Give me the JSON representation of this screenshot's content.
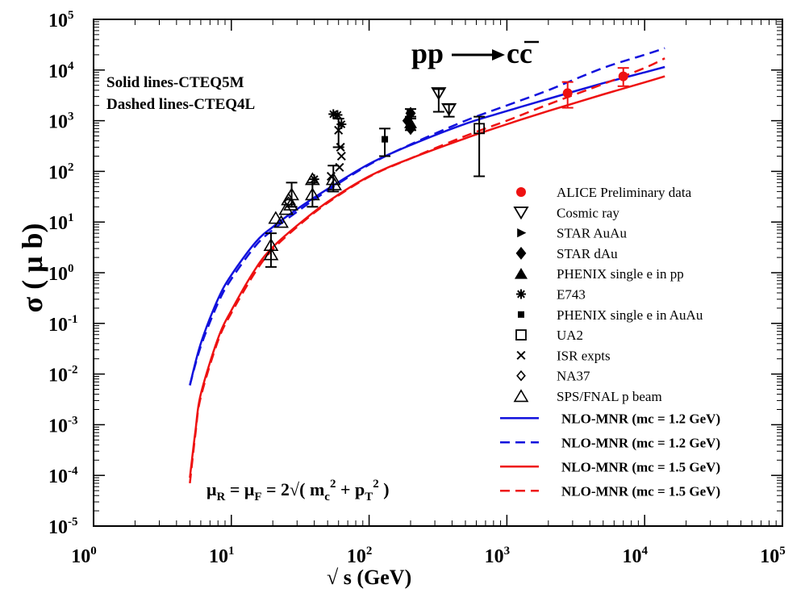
{
  "chart_data": {
    "type": "scatter",
    "title": "pp ⟶ cc̄",
    "xlabel": "√ s   (GeV)",
    "ylabel": "σ  ( μ b)",
    "x_scale": "log",
    "y_scale": "log",
    "xlim": [
      1,
      100000
    ],
    "ylim": [
      1e-05,
      100000
    ],
    "x_ticks": [
      {
        "base": "10",
        "exp": "0"
      },
      {
        "base": "10",
        "exp": "1"
      },
      {
        "base": "10",
        "exp": "2"
      },
      {
        "base": "10",
        "exp": "3"
      },
      {
        "base": "10",
        "exp": "4"
      },
      {
        "base": "10",
        "exp": "5"
      }
    ],
    "y_ticks": [
      {
        "base": "10",
        "exp": "-5"
      },
      {
        "base": "10",
        "exp": "-4"
      },
      {
        "base": "10",
        "exp": "-3"
      },
      {
        "base": "10",
        "exp": "-2"
      },
      {
        "base": "10",
        "exp": "-1"
      },
      {
        "base": "10",
        "exp": "0"
      },
      {
        "base": "10",
        "exp": "1"
      },
      {
        "base": "10",
        "exp": "2"
      },
      {
        "base": "10",
        "exp": "3"
      },
      {
        "base": "10",
        "exp": "4"
      },
      {
        "base": "10",
        "exp": "5"
      }
    ],
    "annotations": {
      "solid_note": "Solid lines-CTEQ5M",
      "dashed_note": "Dashed lines-CTEQ4L",
      "scale_formula": "μR = μF = 2√( mc2 + pT2 )"
    },
    "curves": [
      {
        "name": "NLO-MNR (mc = 1.2 GeV)",
        "color": "#1111dd",
        "dash": false,
        "x": [
          5,
          6,
          8,
          10,
          15,
          20,
          30,
          50,
          100,
          200,
          500,
          1000,
          2000,
          5000,
          10000,
          14000
        ],
        "y": [
          0.006,
          0.04,
          0.3,
          0.9,
          4,
          8,
          18,
          45,
          140,
          330,
          870,
          1550,
          2700,
          5500,
          9000,
          11500
        ]
      },
      {
        "name": "NLO-MNR (mc = 1.2 GeV)",
        "color": "#1111dd",
        "dash": true,
        "x": [
          5,
          6,
          8,
          10,
          15,
          20,
          30,
          50,
          100,
          200,
          500,
          1000,
          2000,
          5000,
          10000,
          14000
        ],
        "y": [
          0.006,
          0.035,
          0.25,
          0.75,
          3.4,
          7,
          16,
          42,
          135,
          340,
          1000,
          2000,
          4000,
          11000,
          20000,
          27000
        ]
      },
      {
        "name": "NLO-MNR (mc = 1.5 GeV)",
        "color": "#ee1111",
        "dash": false,
        "x": [
          5,
          5.5,
          6,
          8,
          10,
          15,
          20,
          30,
          50,
          100,
          200,
          500,
          1000,
          2000,
          5000,
          10000,
          14000
        ],
        "y": [
          9e-05,
          0.0008,
          0.004,
          0.05,
          0.18,
          1.2,
          3.2,
          8.5,
          25,
          80,
          180,
          450,
          850,
          1550,
          3300,
          5700,
          7500
        ]
      },
      {
        "name": "NLO-MNR (mc = 1.5 GeV)",
        "color": "#ee1111",
        "dash": true,
        "x": [
          5,
          5.5,
          6,
          8,
          10,
          15,
          20,
          30,
          50,
          100,
          200,
          500,
          1000,
          2000,
          5000,
          10000,
          14000
        ],
        "y": [
          7e-05,
          0.0007,
          0.0035,
          0.045,
          0.16,
          1.05,
          2.9,
          8,
          24,
          78,
          180,
          500,
          1000,
          2100,
          5300,
          11000,
          17000
        ]
      }
    ],
    "series": [
      {
        "name": "ALICE Preliminary data",
        "marker": "circle",
        "color": "#ee1111",
        "points": [
          {
            "x": 2760,
            "y": 3500,
            "lo": 1800,
            "hi": 5800
          },
          {
            "x": 7000,
            "y": 7500,
            "lo": 4800,
            "hi": 11000
          }
        ]
      },
      {
        "name": "Cosmic ray",
        "marker": "triangle-down",
        "points": [
          {
            "x": 320,
            "y": 3500,
            "lo": 1500,
            "hi": 4200
          },
          {
            "x": 380,
            "y": 1700,
            "lo": 1200,
            "hi": 2100
          }
        ]
      },
      {
        "name": "STAR AuAu",
        "marker": "triangle-right",
        "points": [
          {
            "x": 200,
            "y": 1400
          }
        ]
      },
      {
        "name": "STAR dAu",
        "marker": "diamond",
        "points": [
          {
            "x": 200,
            "y": 1400,
            "lo": 1100,
            "hi": 1700
          },
          {
            "x": 190,
            "y": 1000
          },
          {
            "x": 200,
            "y": 700
          }
        ]
      },
      {
        "name": "PHENIX single e in pp",
        "marker": "triangle-up",
        "points": [
          {
            "x": 200,
            "y": 900,
            "lo": 650,
            "hi": 1200
          }
        ]
      },
      {
        "name": "E743",
        "marker": "asterisk",
        "points": [
          {
            "x": 55,
            "y": 1350
          },
          {
            "x": 59,
            "y": 1300
          },
          {
            "x": 63,
            "y": 850
          },
          {
            "x": 40,
            "y": 70
          }
        ]
      },
      {
        "name": "PHENIX single e in AuAu",
        "marker": "square-filled",
        "points": [
          {
            "x": 130,
            "y": 430,
            "lo": 200,
            "hi": 700
          }
        ]
      },
      {
        "name": "UA2",
        "marker": "square-open",
        "points": [
          {
            "x": 630,
            "y": 700,
            "lo": 80,
            "hi": 1200
          }
        ]
      },
      {
        "name": "ISR expts",
        "marker": "cross",
        "points": [
          {
            "x": 62,
            "y": 300
          },
          {
            "x": 63,
            "y": 200
          },
          {
            "x": 61,
            "y": 120
          },
          {
            "x": 53,
            "y": 80
          },
          {
            "x": 60,
            "y": 650,
            "lo": 300,
            "hi": 1100
          }
        ]
      },
      {
        "name": "NA37",
        "marker": "diamond-open",
        "points": [
          {
            "x": 26,
            "y": 25
          }
        ]
      },
      {
        "name": "SPS/FNAL p beam",
        "marker": "triangle-up-open",
        "points": [
          {
            "x": 19.4,
            "y": 3.5,
            "lo": 1.3,
            "hi": 6
          },
          {
            "x": 19.4,
            "y": 2.3
          },
          {
            "x": 21,
            "y": 12
          },
          {
            "x": 23,
            "y": 10
          },
          {
            "x": 25,
            "y": 18
          },
          {
            "x": 26,
            "y": 28
          },
          {
            "x": 27,
            "y": 22
          },
          {
            "x": 27.4,
            "y": 35,
            "lo": 20,
            "hi": 60
          },
          {
            "x": 38.8,
            "y": 35,
            "lo": 20,
            "hi": 60
          },
          {
            "x": 38.8,
            "y": 70
          },
          {
            "x": 55,
            "y": 70,
            "lo": 40,
            "hi": 130
          },
          {
            "x": 56,
            "y": 55
          }
        ]
      }
    ],
    "legend": {
      "placement": "right",
      "markers": [
        {
          "label": "ALICE Preliminary data",
          "marker": "circle",
          "color": "#ee1111"
        },
        {
          "label": "Cosmic ray",
          "marker": "triangle-down"
        },
        {
          "label": "STAR AuAu",
          "marker": "triangle-right"
        },
        {
          "label": "STAR dAu",
          "marker": "diamond"
        },
        {
          "label": "PHENIX single e in pp",
          "marker": "triangle-up"
        },
        {
          "label": "E743",
          "marker": "asterisk"
        },
        {
          "label": "PHENIX single e in AuAu",
          "marker": "square-filled"
        },
        {
          "label": "UA2",
          "marker": "square-open"
        },
        {
          "label": "ISR expts",
          "marker": "cross"
        },
        {
          "label": "NA37",
          "marker": "diamond-open"
        },
        {
          "label": "SPS/FNAL p beam",
          "marker": "triangle-up-open"
        }
      ],
      "lines": [
        {
          "label": "NLO-MNR (mc = 1.2 GeV)",
          "color": "#1111dd",
          "dash": false
        },
        {
          "label": "NLO-MNR (mc = 1.2 GeV)",
          "color": "#1111dd",
          "dash": true
        },
        {
          "label": "NLO-MNR (mc = 1.5 GeV)",
          "color": "#ee1111",
          "dash": false
        },
        {
          "label": "NLO-MNR (mc = 1.5 GeV)",
          "color": "#ee1111",
          "dash": true
        }
      ]
    },
    "grid": false
  }
}
